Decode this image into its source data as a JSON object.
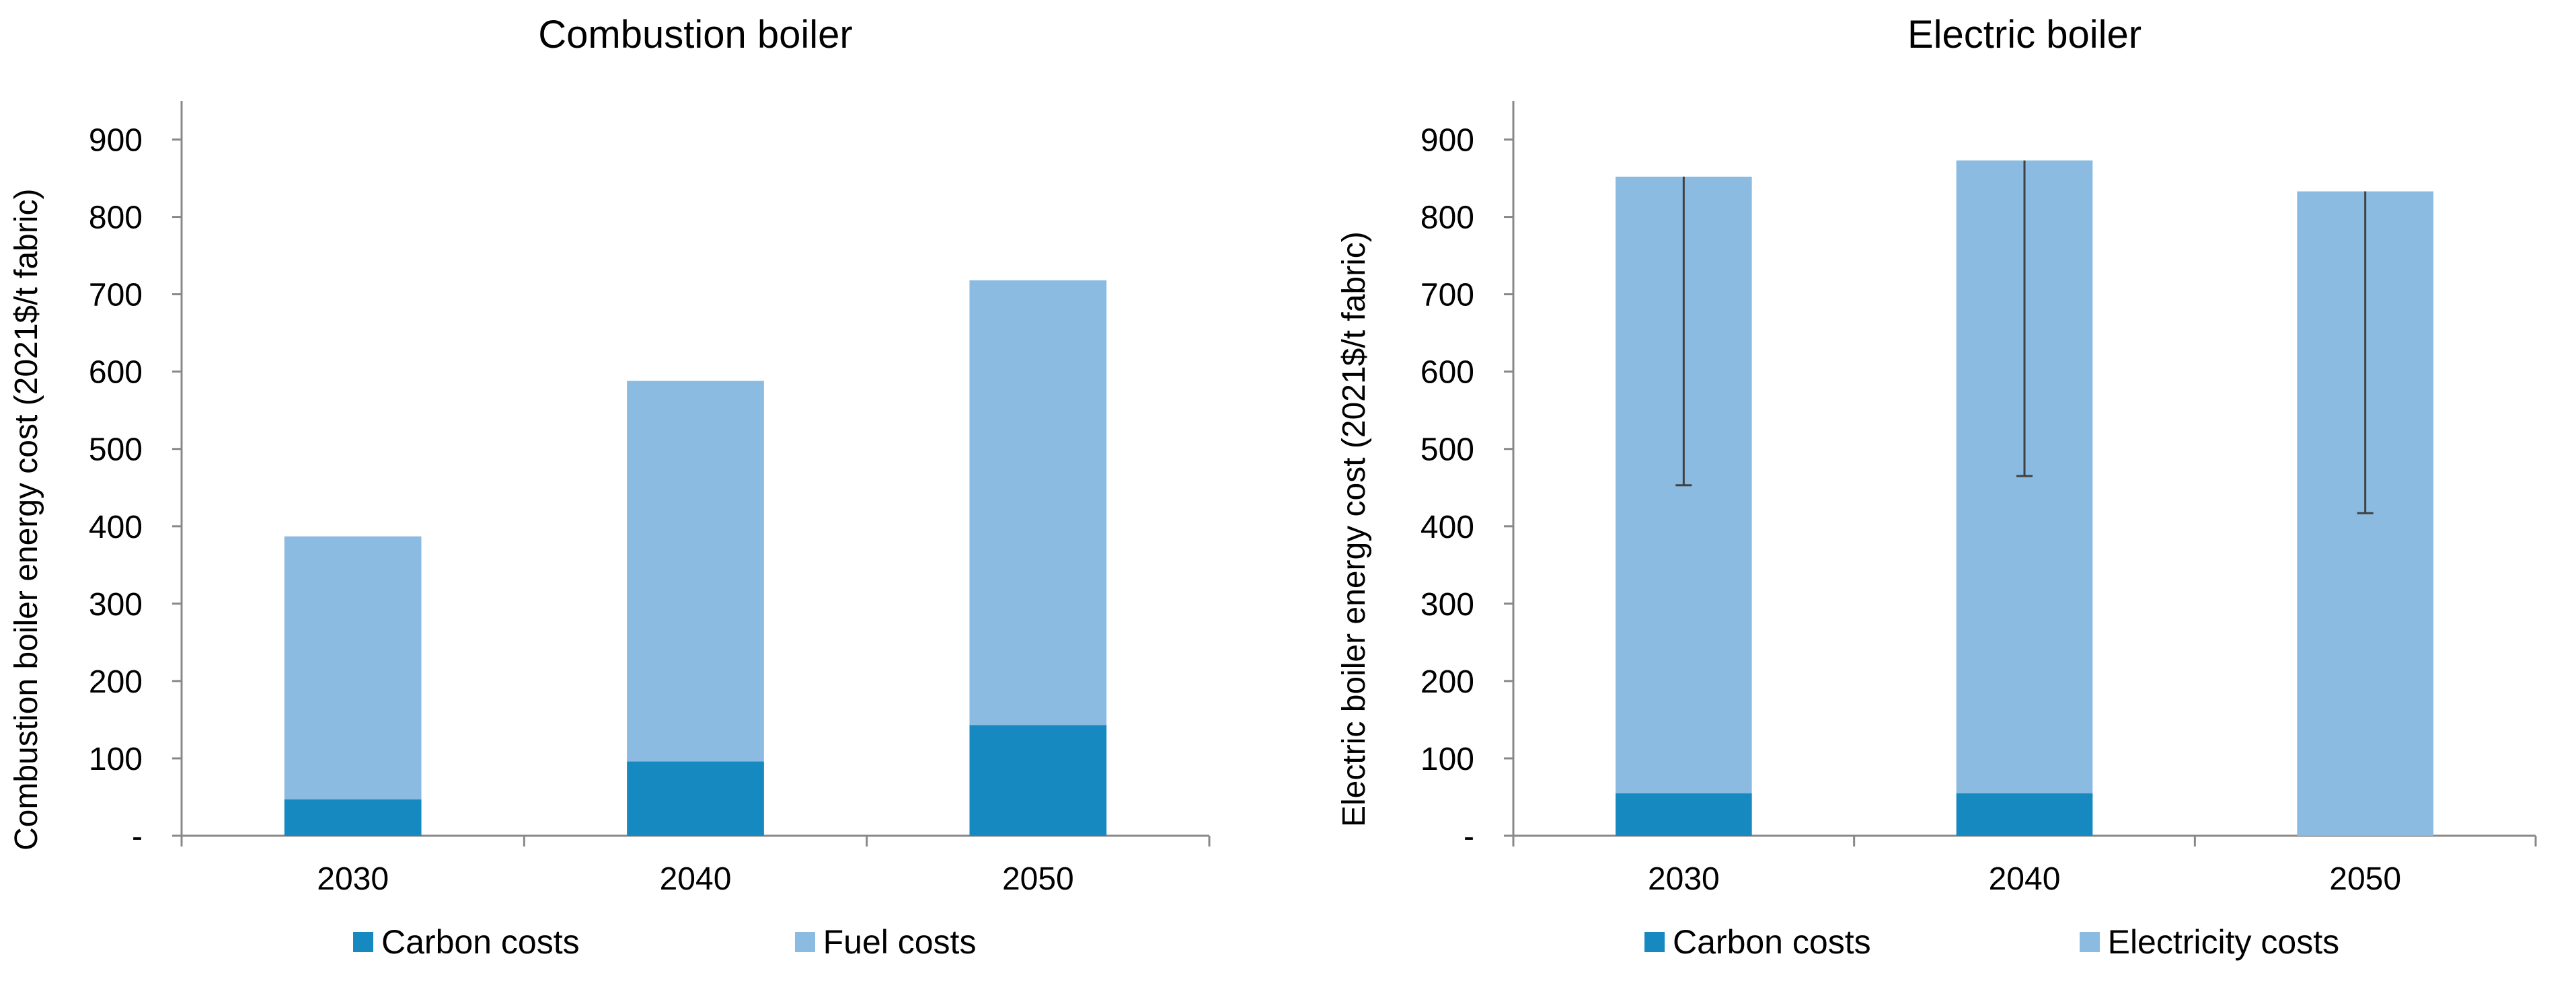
{
  "colors": {
    "carbon": "#1589C0",
    "fuel": "#8BBBE1",
    "axis": "#888888",
    "whisker": "#404040"
  },
  "chart_data": [
    {
      "type": "bar",
      "stacked": true,
      "title": "Combustion boiler",
      "ylabel": "Combustion boiler energy cost  (2021$/t fabric)",
      "xlabel": "",
      "categories": [
        "2030",
        "2040",
        "2050"
      ],
      "ylim": [
        0,
        950
      ],
      "yticks": [
        0,
        100,
        200,
        300,
        400,
        500,
        600,
        700,
        800,
        900
      ],
      "ytick_labels": [
        "-",
        "100",
        "200",
        "300",
        "400",
        "500",
        "600",
        "700",
        "800",
        "900"
      ],
      "series": [
        {
          "name": "Carbon costs",
          "values": [
            47,
            96,
            143
          ]
        },
        {
          "name": "Fuel costs",
          "values": [
            340,
            492,
            575
          ]
        }
      ],
      "error_bars": null,
      "legend_position": "bottom"
    },
    {
      "type": "bar",
      "stacked": true,
      "title": "Electric boiler",
      "ylabel": "Electric boiler energy cost  (2021$/t fabric)",
      "xlabel": "",
      "categories": [
        "2030",
        "2040",
        "2050"
      ],
      "ylim": [
        0,
        950
      ],
      "yticks": [
        0,
        100,
        200,
        300,
        400,
        500,
        600,
        700,
        800,
        900
      ],
      "ytick_labels": [
        "-",
        "100",
        "200",
        "300",
        "400",
        "500",
        "600",
        "700",
        "800",
        "900"
      ],
      "series": [
        {
          "name": "Carbon costs",
          "values": [
            55,
            55,
            0
          ]
        },
        {
          "name": "Electricity costs",
          "values": [
            797,
            818,
            833
          ]
        }
      ],
      "error_bars": {
        "low": [
          453,
          465,
          417
        ],
        "high": [
          852,
          873,
          833
        ]
      },
      "legend_position": "bottom"
    }
  ]
}
